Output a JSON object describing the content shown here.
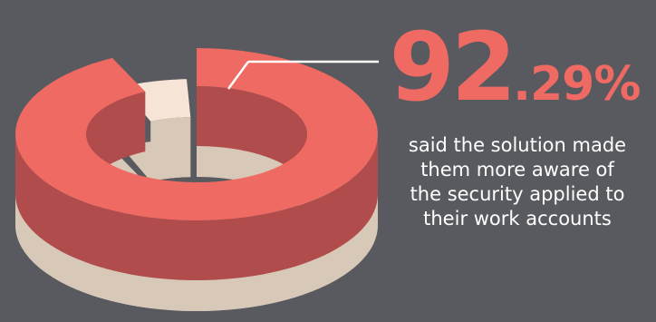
{
  "chart_data": {
    "type": "pie",
    "style": "3d-donut",
    "slices": [
      {
        "value": 92.29,
        "color": "#ef6a63"
      },
      {
        "value": 7.71,
        "color": "#f6e4d6"
      }
    ],
    "title": "",
    "value_label": {
      "integer": "92",
      "decimal": ".29%"
    },
    "caption_lines": [
      "said the solution made",
      "them more aware of",
      "the security applied to",
      "their work accounts"
    ]
  },
  "colors": {
    "background": "#585a5f",
    "highlight": "#ef6a63",
    "highlight_side": "#b04c4c",
    "remainder": "#f6e4d6",
    "remainder_side": "#d8c8b8",
    "leader_line": "#ffffff",
    "caption_text": "#ffffff"
  }
}
